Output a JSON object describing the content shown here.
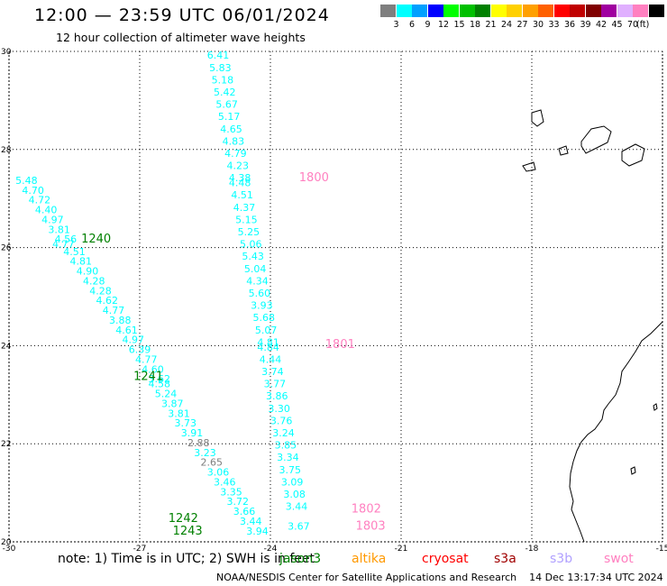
{
  "header": {
    "title": "12:00 — 23:59 UTC 06/01/2024",
    "subtitle": "12 hour collection of altimeter wave heights"
  },
  "legend": {
    "unit": "(ft)",
    "levels": [
      "3",
      "6",
      "9",
      "12",
      "15",
      "18",
      "21",
      "24",
      "27",
      "30",
      "33",
      "36",
      "39",
      "42",
      "45",
      "70"
    ],
    "colors": [
      "#7f7f7f",
      "#00ffff",
      "#00a0ff",
      "#0000ff",
      "#00ff00",
      "#00c000",
      "#008000",
      "#ffff00",
      "#ffd000",
      "#ffa000",
      "#ff6000",
      "#ff0000",
      "#c00000",
      "#800000",
      "#a000a0",
      "#e0b0ff",
      "#ff80c0",
      "#000000"
    ]
  },
  "map": {
    "x_axis_labels": [
      "-30",
      "-27",
      "-24",
      "-21",
      "-18",
      "-15"
    ],
    "y_axis_labels": [
      "30",
      "28",
      "26",
      "24",
      "22",
      "20"
    ],
    "lon_range": [
      -30,
      -15
    ],
    "lat_range": [
      20,
      30
    ],
    "grid": "dotted",
    "track_labels": [
      {
        "text": "1240",
        "lon": -28.0,
        "lat": 26.1,
        "color": "#008000"
      },
      {
        "text": "1241",
        "lon": -26.8,
        "lat": 23.3,
        "color": "#008000"
      },
      {
        "text": "1242",
        "lon": -26.0,
        "lat": 20.4,
        "color": "#008000"
      },
      {
        "text": "1243",
        "lon": -25.9,
        "lat": 20.15,
        "color": "#008000"
      },
      {
        "text": "1800",
        "lon": -23.0,
        "lat": 27.35,
        "color": "#ff80c0"
      },
      {
        "text": "1801",
        "lon": -22.4,
        "lat": 23.95,
        "color": "#ff80c0"
      },
      {
        "text": "1802",
        "lon": -21.8,
        "lat": 20.6,
        "color": "#ff80c0"
      },
      {
        "text": "1803",
        "lon": -21.7,
        "lat": 20.25,
        "color": "#ff80c0"
      }
    ],
    "tracks": [
      {
        "name": "left",
        "points": [
          {
            "v": "5.48",
            "lon": -29.6,
            "lat": 27.3,
            "c": "#00ffff"
          },
          {
            "v": "4.70",
            "lon": -29.45,
            "lat": 27.1,
            "c": "#00ffff"
          },
          {
            "v": "4.72",
            "lon": -29.3,
            "lat": 26.9,
            "c": "#00ffff"
          },
          {
            "v": "4.40",
            "lon": -29.15,
            "lat": 26.7,
            "c": "#00ffff"
          },
          {
            "v": "4.97",
            "lon": -29.0,
            "lat": 26.5,
            "c": "#00ffff"
          },
          {
            "v": "3.81",
            "lon": -28.85,
            "lat": 26.3,
            "c": "#00ffff"
          },
          {
            "v": "4.56",
            "lon": -28.7,
            "lat": 26.1,
            "c": "#00ffff"
          },
          {
            "v": "4.77",
            "lon": -28.75,
            "lat": 26.0,
            "c": "#00ffff"
          },
          {
            "v": "4.51",
            "lon": -28.5,
            "lat": 25.85,
            "c": "#00ffff"
          },
          {
            "v": "4.81",
            "lon": -28.35,
            "lat": 25.65,
            "c": "#00ffff"
          },
          {
            "v": "4.90",
            "lon": -28.2,
            "lat": 25.45,
            "c": "#00ffff"
          },
          {
            "v": "4.28",
            "lon": -28.05,
            "lat": 25.25,
            "c": "#00ffff"
          },
          {
            "v": "4.28",
            "lon": -27.9,
            "lat": 25.05,
            "c": "#00ffff"
          },
          {
            "v": "4.62",
            "lon": -27.75,
            "lat": 24.85,
            "c": "#00ffff"
          },
          {
            "v": "4.77",
            "lon": -27.6,
            "lat": 24.65,
            "c": "#00ffff"
          },
          {
            "v": "3.88",
            "lon": -27.45,
            "lat": 24.45,
            "c": "#00ffff"
          },
          {
            "v": "4.61",
            "lon": -27.3,
            "lat": 24.25,
            "c": "#00ffff"
          },
          {
            "v": "4.97",
            "lon": -27.15,
            "lat": 24.05,
            "c": "#00ffff"
          },
          {
            "v": "6.39",
            "lon": -27.0,
            "lat": 23.85,
            "c": "#00ffff"
          },
          {
            "v": "4.77",
            "lon": -26.85,
            "lat": 23.65,
            "c": "#00ffff"
          },
          {
            "v": "4.60",
            "lon": -26.7,
            "lat": 23.45,
            "c": "#00ffff"
          },
          {
            "v": "3.62",
            "lon": -26.55,
            "lat": 23.25,
            "c": "#00ffff"
          },
          {
            "v": "4.58",
            "lon": -26.55,
            "lat": 23.15,
            "c": "#00ffff"
          },
          {
            "v": "5.24",
            "lon": -26.4,
            "lat": 22.95,
            "c": "#00ffff"
          },
          {
            "v": "3.87",
            "lon": -26.25,
            "lat": 22.75,
            "c": "#00ffff"
          },
          {
            "v": "3.81",
            "lon": -26.1,
            "lat": 22.55,
            "c": "#00ffff"
          },
          {
            "v": "3.73",
            "lon": -25.95,
            "lat": 22.35,
            "c": "#00ffff"
          },
          {
            "v": "3.91",
            "lon": -25.8,
            "lat": 22.15,
            "c": "#00ffff"
          },
          {
            "v": "2.88",
            "lon": -25.65,
            "lat": 21.95,
            "c": "#7f7f7f"
          },
          {
            "v": "3.23",
            "lon": -25.5,
            "lat": 21.75,
            "c": "#00ffff"
          },
          {
            "v": "2.65",
            "lon": -25.35,
            "lat": 21.55,
            "c": "#7f7f7f"
          },
          {
            "v": "3.06",
            "lon": -25.2,
            "lat": 21.35,
            "c": "#00ffff"
          },
          {
            "v": "3.46",
            "lon": -25.05,
            "lat": 21.15,
            "c": "#00ffff"
          },
          {
            "v": "3.35",
            "lon": -24.9,
            "lat": 20.95,
            "c": "#00ffff"
          },
          {
            "v": "3.72",
            "lon": -24.75,
            "lat": 20.75,
            "c": "#00ffff"
          },
          {
            "v": "3.66",
            "lon": -24.6,
            "lat": 20.55,
            "c": "#00ffff"
          },
          {
            "v": "3.44",
            "lon": -24.45,
            "lat": 20.35,
            "c": "#00ffff"
          },
          {
            "v": "3.94",
            "lon": -24.3,
            "lat": 20.15,
            "c": "#00ffff"
          }
        ]
      },
      {
        "name": "right",
        "points": [
          {
            "v": "6.41",
            "lon": -25.2,
            "lat": 29.85,
            "c": "#00ffff"
          },
          {
            "v": "5.83",
            "lon": -25.15,
            "lat": 29.6,
            "c": "#00ffff"
          },
          {
            "v": "5.18",
            "lon": -25.1,
            "lat": 29.35,
            "c": "#00ffff"
          },
          {
            "v": "5.42",
            "lon": -25.05,
            "lat": 29.1,
            "c": "#00ffff"
          },
          {
            "v": "5.67",
            "lon": -25.0,
            "lat": 28.85,
            "c": "#00ffff"
          },
          {
            "v": "5.17",
            "lon": -24.95,
            "lat": 28.6,
            "c": "#00ffff"
          },
          {
            "v": "4.65",
            "lon": -24.9,
            "lat": 28.35,
            "c": "#00ffff"
          },
          {
            "v": "4.83",
            "lon": -24.85,
            "lat": 28.1,
            "c": "#00ffff"
          },
          {
            "v": "4.79",
            "lon": -24.8,
            "lat": 27.85,
            "c": "#00ffff"
          },
          {
            "v": "4.23",
            "lon": -24.75,
            "lat": 27.6,
            "c": "#00ffff"
          },
          {
            "v": "4.38",
            "lon": -24.7,
            "lat": 27.35,
            "c": "#00ffff"
          },
          {
            "v": "4.48",
            "lon": -24.7,
            "lat": 27.25,
            "c": "#00ffff"
          },
          {
            "v": "4.51",
            "lon": -24.65,
            "lat": 27.0,
            "c": "#00ffff"
          },
          {
            "v": "4.37",
            "lon": -24.6,
            "lat": 26.75,
            "c": "#00ffff"
          },
          {
            "v": "5.15",
            "lon": -24.55,
            "lat": 26.5,
            "c": "#00ffff"
          },
          {
            "v": "5.25",
            "lon": -24.5,
            "lat": 26.25,
            "c": "#00ffff"
          },
          {
            "v": "5.06",
            "lon": -24.45,
            "lat": 26.0,
            "c": "#00ffff"
          },
          {
            "v": "5.43",
            "lon": -24.4,
            "lat": 25.75,
            "c": "#00ffff"
          },
          {
            "v": "5.04",
            "lon": -24.35,
            "lat": 25.5,
            "c": "#00ffff"
          },
          {
            "v": "4.34",
            "lon": -24.3,
            "lat": 25.25,
            "c": "#00ffff"
          },
          {
            "v": "5.60",
            "lon": -24.25,
            "lat": 25.0,
            "c": "#00ffff"
          },
          {
            "v": "3.93",
            "lon": -24.2,
            "lat": 24.75,
            "c": "#00ffff"
          },
          {
            "v": "5.68",
            "lon": -24.15,
            "lat": 24.5,
            "c": "#00ffff"
          },
          {
            "v": "5.07",
            "lon": -24.1,
            "lat": 24.25,
            "c": "#00ffff"
          },
          {
            "v": "4.81",
            "lon": -24.05,
            "lat": 24.0,
            "c": "#00ffff"
          },
          {
            "v": "4.84",
            "lon": -24.05,
            "lat": 23.9,
            "c": "#00ffff"
          },
          {
            "v": "4.44",
            "lon": -24.0,
            "lat": 23.65,
            "c": "#00ffff"
          },
          {
            "v": "3.74",
            "lon": -23.95,
            "lat": 23.4,
            "c": "#00ffff"
          },
          {
            "v": "3.77",
            "lon": -23.9,
            "lat": 23.15,
            "c": "#00ffff"
          },
          {
            "v": "3.86",
            "lon": -23.85,
            "lat": 22.9,
            "c": "#00ffff"
          },
          {
            "v": "3.30",
            "lon": -23.8,
            "lat": 22.65,
            "c": "#00ffff"
          },
          {
            "v": "3.76",
            "lon": -23.75,
            "lat": 22.4,
            "c": "#00ffff"
          },
          {
            "v": "3.24",
            "lon": -23.7,
            "lat": 22.15,
            "c": "#00ffff"
          },
          {
            "v": "3.85",
            "lon": -23.65,
            "lat": 21.9,
            "c": "#00ffff"
          },
          {
            "v": "3.34",
            "lon": -23.6,
            "lat": 21.65,
            "c": "#00ffff"
          },
          {
            "v": "3.75",
            "lon": -23.55,
            "lat": 21.4,
            "c": "#00ffff"
          },
          {
            "v": "3.09",
            "lon": -23.5,
            "lat": 21.15,
            "c": "#00ffff"
          },
          {
            "v": "3.08",
            "lon": -23.45,
            "lat": 20.9,
            "c": "#00ffff"
          },
          {
            "v": "3.44",
            "lon": -23.4,
            "lat": 20.65,
            "c": "#00ffff"
          },
          {
            "v": "3.67",
            "lon": -23.35,
            "lat": 20.25,
            "c": "#00ffff"
          }
        ]
      }
    ]
  },
  "note": {
    "text": "note: 1) Time is in UTC; 2) SWH is in feet",
    "satellites": [
      {
        "name": "jason3",
        "color": "#008000"
      },
      {
        "name": "altika",
        "color": "#ff9900"
      },
      {
        "name": "cryosat",
        "color": "#ff0000"
      },
      {
        "name": "s3a",
        "color": "#a00000"
      },
      {
        "name": "s3b",
        "color": "#b0a0ff"
      },
      {
        "name": "swot",
        "color": "#ff80c0"
      }
    ]
  },
  "footer": {
    "credit": "NOAA/NESDIS Center for Satellite Applications and Research",
    "timestamp": "14 Dec 13:17:34 UTC 2024"
  }
}
